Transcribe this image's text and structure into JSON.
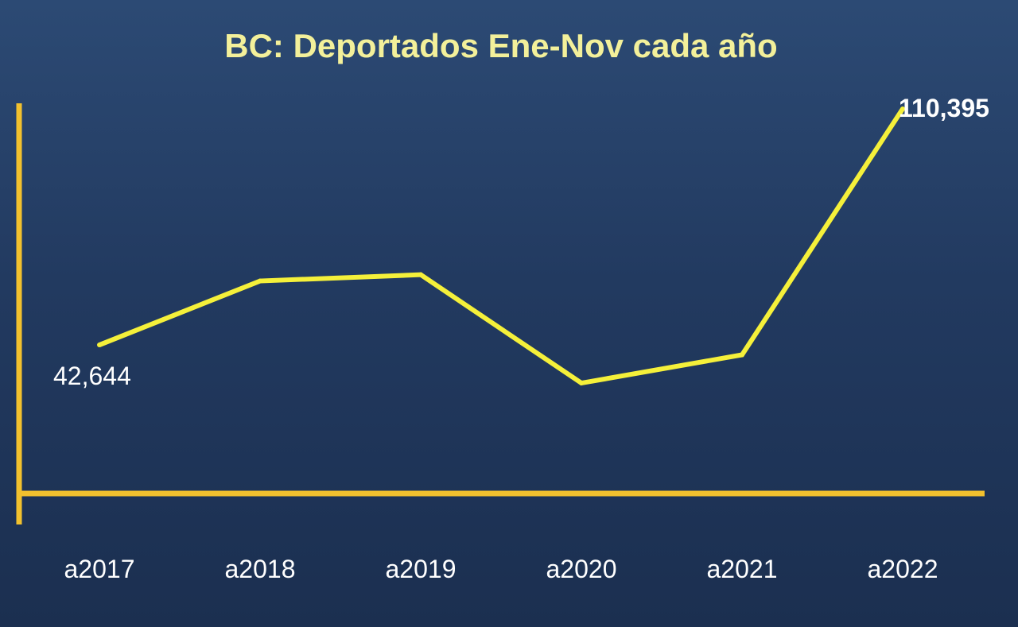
{
  "chart_data": {
    "type": "line",
    "title": "BC: Deportados Ene-Nov cada año",
    "xlabel": "",
    "ylabel": "",
    "categories": [
      "a2017",
      "a2018",
      "a2019",
      "a2020",
      "a2021",
      "a2022"
    ],
    "series": [
      {
        "values": [
          42644,
          61000,
          62800,
          31700,
          39800,
          110395
        ]
      }
    ],
    "data_labels": [
      {
        "index": 0,
        "text": "42,644"
      },
      {
        "index": 5,
        "text": "110,395"
      }
    ],
    "ylim": [
      0,
      110395
    ],
    "grid": false,
    "legend": "none"
  },
  "colors": {
    "title": "#f3f09a",
    "axis": "#f2c12e",
    "line": "#f5f03a",
    "text": "#ffffff"
  }
}
